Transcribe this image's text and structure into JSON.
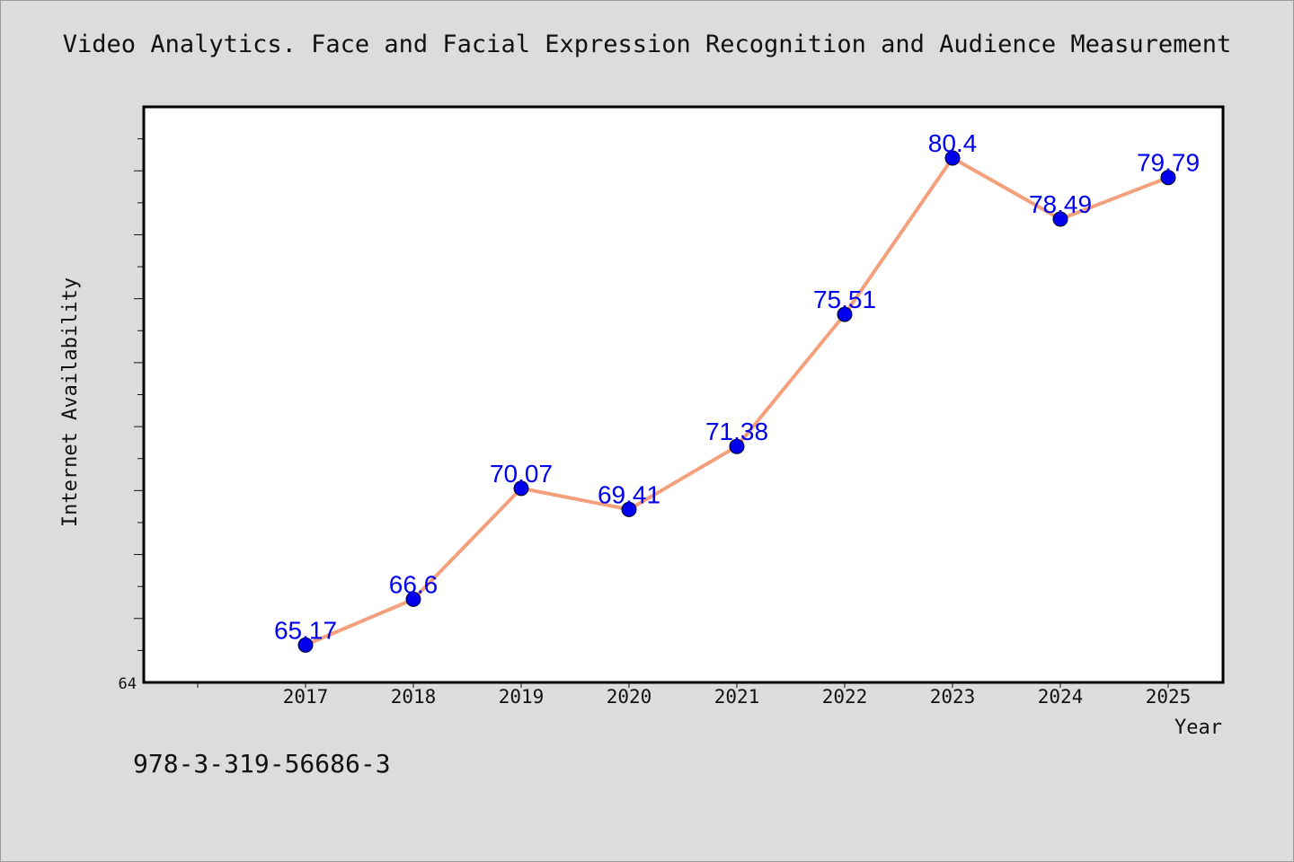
{
  "chart_data": {
    "type": "line",
    "title": "Video Analytics. Face and Facial Expression Recognition and Audience Measurement",
    "xlabel": "Year",
    "ylabel": "Internet Availability",
    "categories": [
      "2017",
      "2018",
      "2019",
      "2020",
      "2021",
      "2022",
      "2023",
      "2024",
      "2025"
    ],
    "series": [
      {
        "values": [
          65.17,
          66.6,
          70.07,
          69.41,
          71.38,
          75.51,
          80.4,
          78.49,
          79.79
        ],
        "labels": [
          "65.17",
          "66.6",
          "70.07",
          "69.41",
          "71.38",
          "75.51",
          "80.4",
          "78.49",
          "79.79"
        ],
        "line_color": "#f4a07c",
        "marker_color": "#0000ee"
      }
    ],
    "ylim": [
      64,
      82
    ],
    "y_tick_labels": [
      "64"
    ],
    "grid": false,
    "legend": "none"
  },
  "footer": {
    "text": "978-3-319-56686-3"
  }
}
